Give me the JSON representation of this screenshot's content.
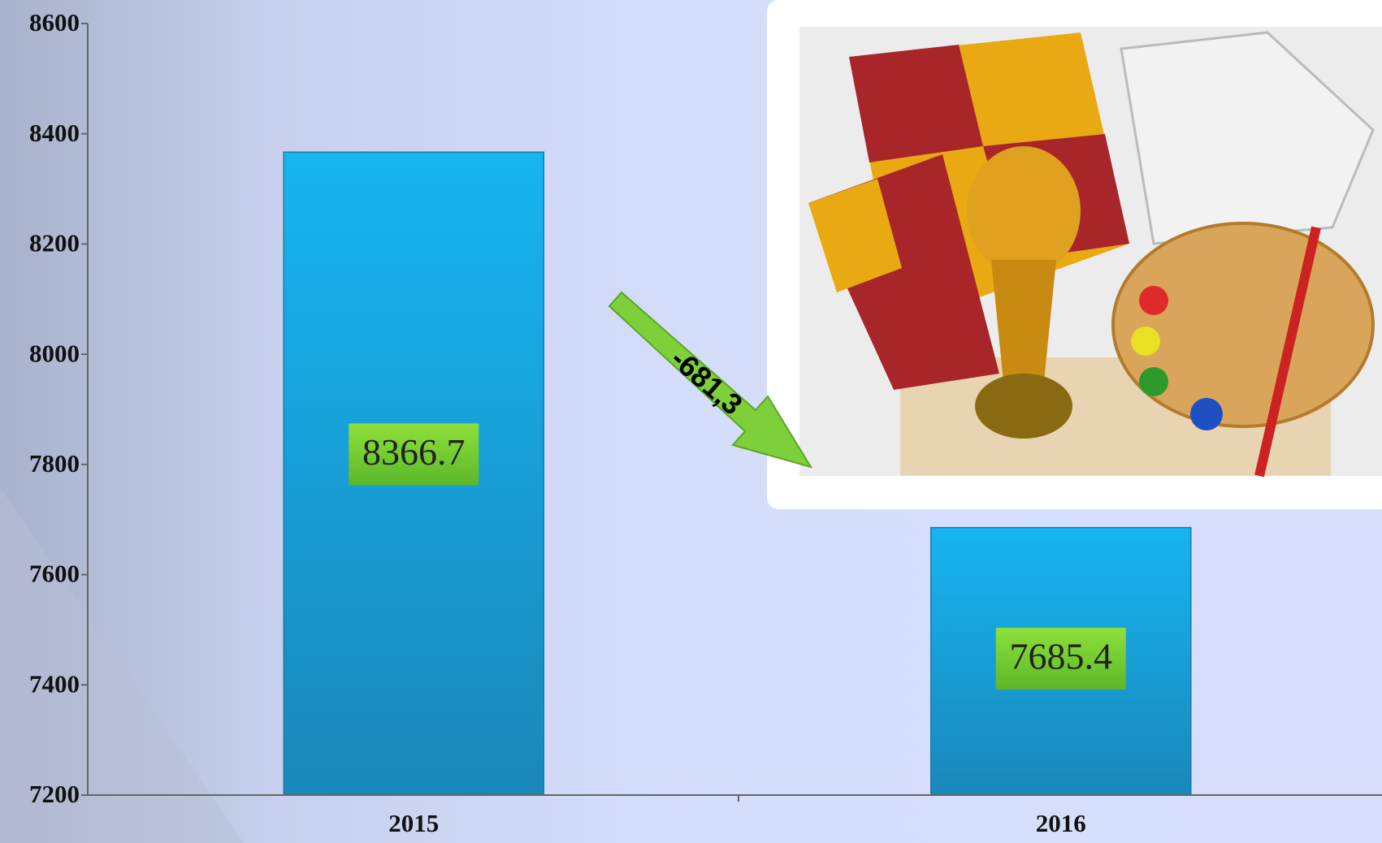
{
  "chart_data": {
    "type": "bar",
    "categories": [
      "2015",
      "2016"
    ],
    "values": [
      8366.7,
      7685.4
    ],
    "ylim": [
      7200,
      8600
    ],
    "yticks": [
      7200,
      7400,
      7600,
      7800,
      8000,
      8200,
      8400,
      8600
    ],
    "annotation": "-681,3",
    "grid": false
  }
}
